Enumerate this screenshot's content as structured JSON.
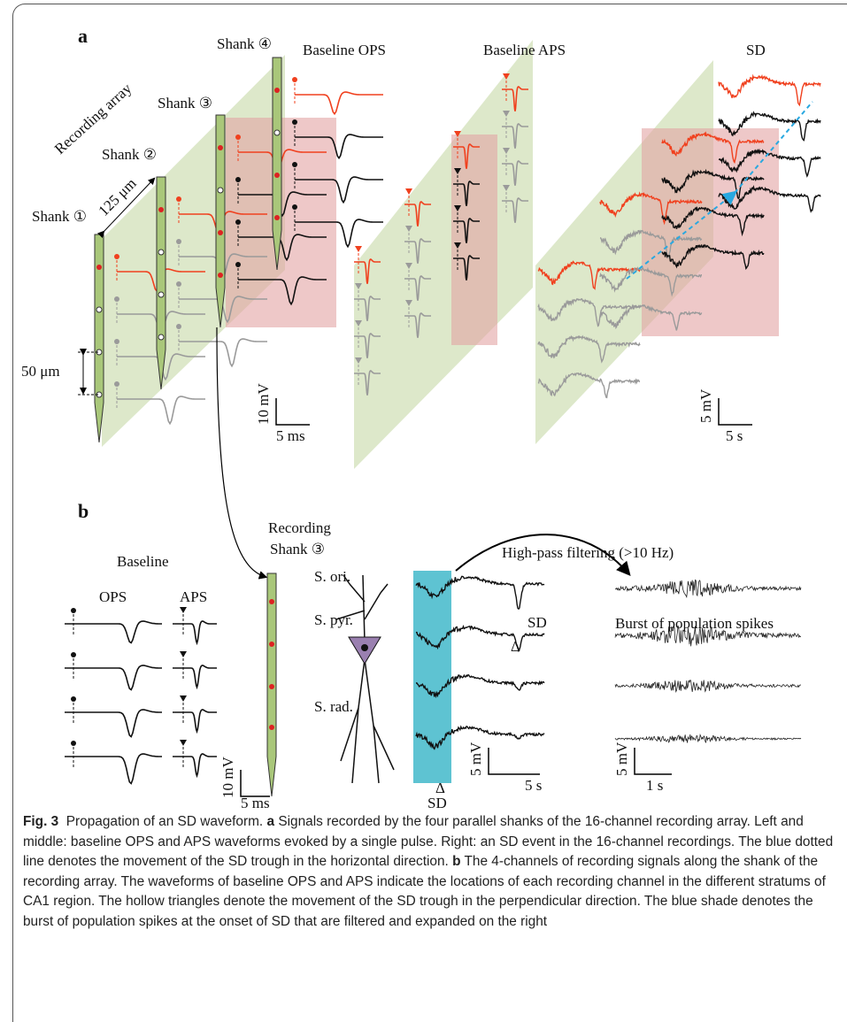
{
  "panel_a": {
    "label": "a",
    "recording_array": "Recording array",
    "shanks": [
      "Shank ①",
      "Shank ②",
      "Shank ③",
      "Shank ④"
    ],
    "spacing_horizontal": "125 μm",
    "spacing_vertical": "50 μm",
    "titles": [
      "Baseline OPS",
      "Baseline APS",
      "SD"
    ],
    "scalebars": [
      {
        "y": "10 mV",
        "x": "5 ms"
      },
      {
        "y": "5 mV",
        "x": "5 s"
      }
    ]
  },
  "panel_b": {
    "label": "b",
    "baseline": "Baseline",
    "ops": "OPS",
    "aps": "APS",
    "recording_shank": [
      "Recording",
      "Shank ③"
    ],
    "strata": [
      "S. ori.",
      "S. pyr.",
      "S. rad."
    ],
    "filter": "High-pass filtering (>10 Hz)",
    "sd": "SD",
    "marker": "Δ",
    "burst": "Burst of population spikes",
    "scalebars": [
      {
        "y": "10 mV",
        "x": "5 ms"
      },
      {
        "y": "5 mV",
        "x": "5 s"
      },
      {
        "y": "5 mV",
        "x": "1 s"
      }
    ]
  },
  "caption": {
    "label": "Fig. 3",
    "title": "Propagation of an SD waveform.",
    "parts": [
      {
        "label": "a",
        "text": "Signals recorded by the four parallel shanks of the 16-channel recording array. Left and middle: baseline OPS and APS waveforms evoked by a single pulse. Right: an SD event in the 16-channel recordings. The blue dotted line denotes the movement of the SD trough in the horizontal direction."
      },
      {
        "label": "b",
        "text": "The 4-channels of recording signals along the shank of the recording array. The waveforms of baseline OPS and APS indicate the locations of each recording channel in the different stratums of CA1 region. The hollow triangles denote the movement of the SD trough in the perpendicular direction. The blue shade denotes the burst of population spikes at the onset of SD that are filtered and expanded on the right"
      }
    ]
  }
}
